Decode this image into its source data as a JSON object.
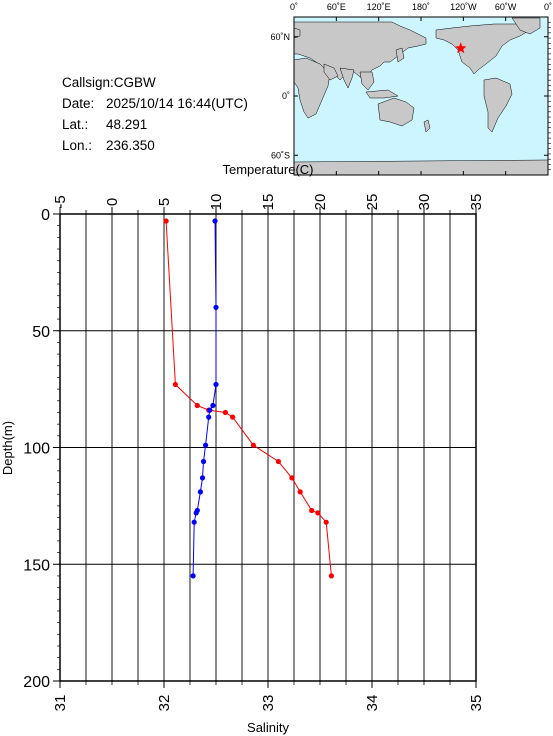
{
  "info": {
    "callsign_label": "Callsign:",
    "callsign": "CGBW",
    "date_label": "Date:",
    "date": "2025/10/14 16:44(UTC)",
    "lat_label": "Lat.:",
    "lat": "48.291",
    "lon_label": "Lon.:",
    "lon": "236.350"
  },
  "map": {
    "lon_ticks": [
      "0˚",
      "60˚E",
      "120˚E",
      "180˚",
      "120˚W",
      "60˚W",
      "0˚"
    ],
    "lat_ticks": [
      "60˚N",
      "0˚",
      "60˚S"
    ],
    "marker_lat": 48.291,
    "marker_lon": 236.35,
    "ocean_color": "#ccf5ff",
    "land_color": "#c8c8c8",
    "marker_color": "#ff0000",
    "marker_icon": "star-icon"
  },
  "chart_data": {
    "type": "line",
    "title": "",
    "xlabel_top": "Temperature(C)",
    "xlabel_bottom": "Salinity",
    "ylabel": "Depth(m)",
    "temp_lim": [
      -5,
      35
    ],
    "temp_ticks": [
      "-5",
      "0",
      "5",
      "10",
      "15",
      "20",
      "25",
      "30",
      "35"
    ],
    "sal_lim": [
      31,
      35
    ],
    "sal_ticks": [
      "31",
      "32",
      "33",
      "34",
      "35"
    ],
    "depth_lim": [
      0,
      200
    ],
    "depth_ticks": [
      "0",
      "50",
      "100",
      "150",
      "200"
    ],
    "grid": true,
    "series": [
      {
        "axis": "temperature",
        "color": "#ff0000",
        "points": [
          [
            5.2,
            3
          ],
          [
            6.1,
            73
          ],
          [
            8.2,
            82
          ],
          [
            9.3,
            84
          ],
          [
            10.9,
            85
          ],
          [
            11.6,
            87
          ],
          [
            13.6,
            99
          ],
          [
            16.0,
            106
          ],
          [
            17.3,
            113
          ],
          [
            18.1,
            119
          ],
          [
            19.2,
            127
          ],
          [
            19.8,
            128
          ],
          [
            20.6,
            132
          ],
          [
            21.1,
            155
          ]
        ]
      },
      {
        "axis": "salinity",
        "color": "#0000ff",
        "points": [
          [
            32.49,
            3
          ],
          [
            32.5,
            40
          ],
          [
            32.5,
            73
          ],
          [
            32.47,
            82
          ],
          [
            32.44,
            84
          ],
          [
            32.43,
            87
          ],
          [
            32.4,
            99
          ],
          [
            32.38,
            106
          ],
          [
            32.37,
            113
          ],
          [
            32.35,
            119
          ],
          [
            32.32,
            127
          ],
          [
            32.31,
            128
          ],
          [
            32.29,
            132
          ],
          [
            32.28,
            155
          ]
        ]
      }
    ]
  }
}
